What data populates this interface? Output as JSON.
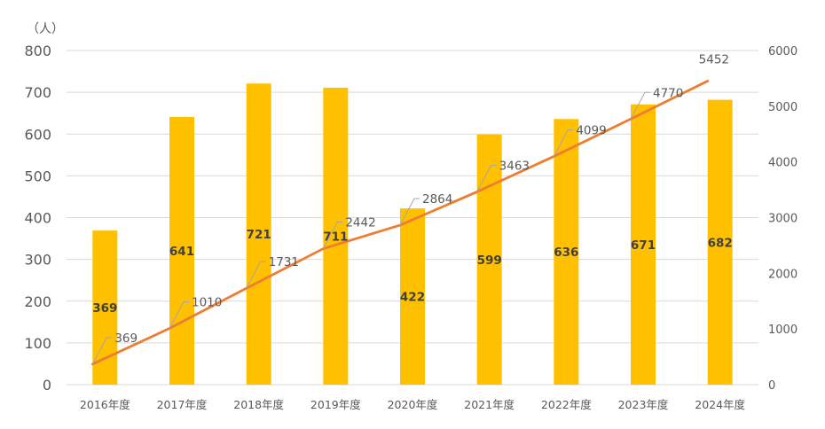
{
  "chart_data": {
    "type": "bar",
    "categories": [
      "2016年度",
      "2017年度",
      "2018年度",
      "2019年度",
      "2020年度",
      "2021年度",
      "2022年度",
      "2023年度",
      "2024年度"
    ],
    "series": [
      {
        "type": "bar",
        "axis": "left",
        "color": "#ffc000",
        "values": [
          369,
          641,
          721,
          711,
          422,
          599,
          636,
          671,
          682
        ]
      },
      {
        "type": "line",
        "axis": "right",
        "color": "#ed7d31",
        "values": [
          369,
          1010,
          1731,
          2442,
          2864,
          3463,
          4099,
          4770,
          5452
        ]
      }
    ],
    "y_left": {
      "unit_label": "（人）",
      "range": [
        0,
        800
      ],
      "ticks": [
        0,
        100,
        200,
        300,
        400,
        500,
        600,
        700,
        800
      ]
    },
    "y_right": {
      "range": [
        0,
        6000
      ],
      "ticks": [
        0,
        1000,
        2000,
        3000,
        4000,
        5000,
        6000
      ]
    },
    "grid": true,
    "legend": "none"
  }
}
